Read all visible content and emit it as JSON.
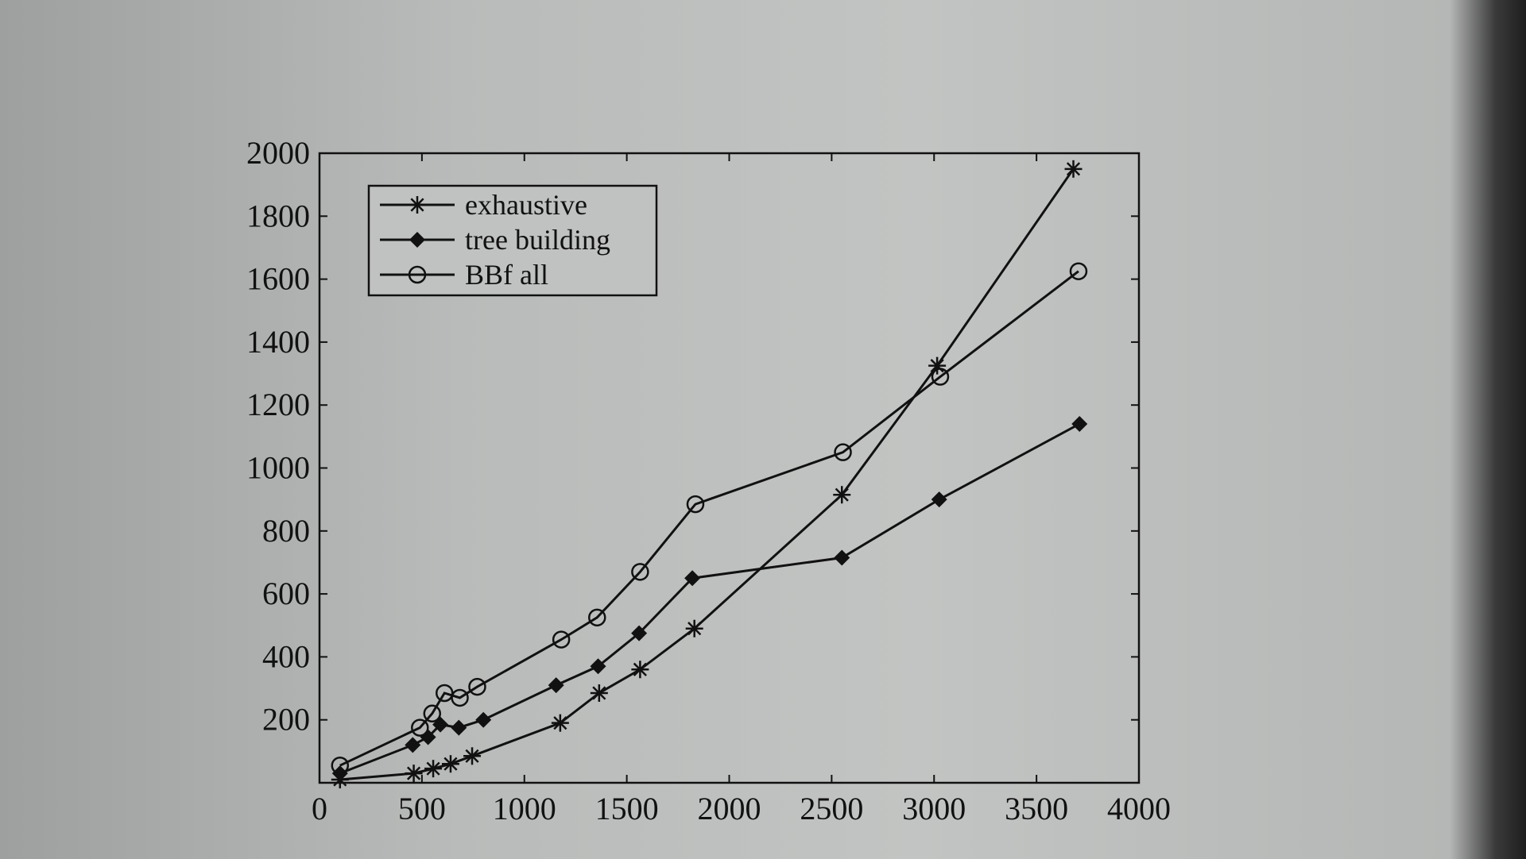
{
  "chart_data": {
    "type": "line",
    "title": "",
    "xlabel": "",
    "ylabel": "",
    "xlim": [
      0,
      4000
    ],
    "ylim": [
      0,
      2000
    ],
    "xticks": [
      "0",
      "500",
      "1000",
      "1500",
      "2000",
      "2500",
      "3000",
      "3500",
      "4000"
    ],
    "yticks": [
      "200",
      "400",
      "600",
      "800",
      "1000",
      "1200",
      "1400",
      "1600",
      "1800",
      "2000"
    ],
    "grid": false,
    "legend_position": "top-left",
    "series": [
      {
        "name": "exhaustive",
        "marker": "asterisk",
        "x": [
          100,
          460,
          555,
          640,
          745,
          1175,
          1365,
          1565,
          1830,
          2550,
          3015,
          3680
        ],
        "y": [
          10,
          30,
          45,
          60,
          85,
          190,
          285,
          360,
          490,
          915,
          1325,
          1950
        ]
      },
      {
        "name": "tree building",
        "marker": "diamond",
        "x": [
          100,
          455,
          530,
          590,
          680,
          800,
          1155,
          1360,
          1560,
          1820,
          2550,
          3025,
          3710
        ],
        "y": [
          30,
          120,
          145,
          185,
          175,
          200,
          310,
          370,
          475,
          650,
          715,
          900,
          1140
        ]
      },
      {
        "name": "BBf all",
        "marker": "circle",
        "x": [
          100,
          490,
          550,
          610,
          685,
          770,
          1180,
          1355,
          1565,
          1835,
          2555,
          3030,
          3705
        ],
        "y": [
          55,
          175,
          220,
          285,
          270,
          305,
          455,
          525,
          670,
          885,
          1050,
          1290,
          1625
        ]
      }
    ]
  }
}
